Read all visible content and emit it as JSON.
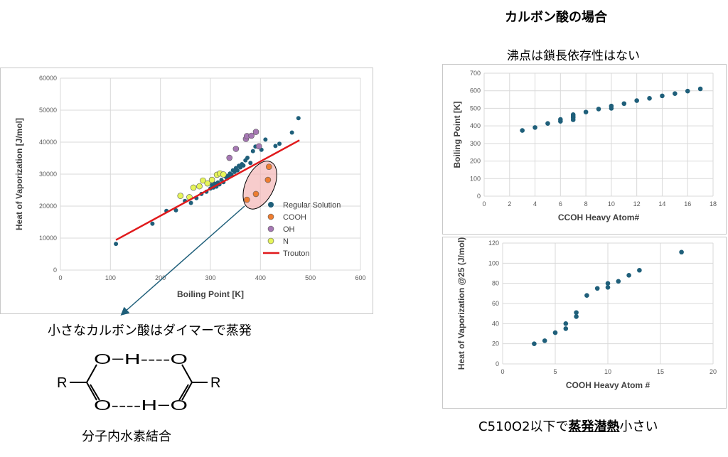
{
  "page": {
    "title": "カルボン酸の場合",
    "top_right_caption": "沸点は鎖長依存性はない",
    "arrow_caption": "小さなカルボン酸はダイマーで蒸発",
    "structure_caption": "分子内水素結合",
    "bottom_right_prefix": "C510O2以下で",
    "bottom_right_emphasis": "蒸発潜熱",
    "bottom_right_suffix": "小さい"
  },
  "structure": {
    "r_left": "R",
    "r_right": "R",
    "top_row": "O−H----O",
    "bottom_row": "O----H−O"
  },
  "chart_data": [
    {
      "type": "scatter",
      "title": "",
      "xlabel": "Boiling Point [K]",
      "ylabel": "Heat of Vaporization [J/mol]",
      "xlim": [
        0,
        600
      ],
      "ylim": [
        0,
        60000
      ],
      "xticks": [
        0,
        100,
        200,
        300,
        400,
        500,
        600
      ],
      "yticks": [
        0,
        10000,
        20000,
        30000,
        40000,
        50000,
        60000
      ],
      "grid": true,
      "legend_position": "bottom-right",
      "series": [
        {
          "name": "Regular Solution",
          "color": "#1f5f7a",
          "points": [
            [
              111,
              8200
            ],
            [
              184,
              14500
            ],
            [
              212,
              18500
            ],
            [
              231,
              18700
            ],
            [
              249,
              21600
            ],
            [
              261,
              21000
            ],
            [
              272,
              22500
            ],
            [
              282,
              23800
            ],
            [
              292,
              24500
            ],
            [
              300,
              25500
            ],
            [
              303,
              26600
            ],
            [
              306,
              25800
            ],
            [
              309,
              27000
            ],
            [
              312,
              26100
            ],
            [
              315,
              27400
            ],
            [
              318,
              26800
            ],
            [
              322,
              28200
            ],
            [
              326,
              27500
            ],
            [
              330,
              29300
            ],
            [
              333,
              28600
            ],
            [
              336,
              29500
            ],
            [
              339,
              30200
            ],
            [
              342,
              29800
            ],
            [
              345,
              31200
            ],
            [
              348,
              30700
            ],
            [
              351,
              31900
            ],
            [
              354,
              31200
            ],
            [
              357,
              32600
            ],
            [
              360,
              32100
            ],
            [
              363,
              33100
            ],
            [
              366,
              32700
            ],
            [
              370,
              34300
            ],
            [
              374,
              35100
            ],
            [
              380,
              33500
            ],
            [
              385,
              37200
            ],
            [
              390,
              38600
            ],
            [
              396,
              38900
            ],
            [
              402,
              37600
            ],
            [
              410,
              40800
            ],
            [
              430,
              38800
            ],
            [
              438,
              39500
            ],
            [
              463,
              43000
            ],
            [
              476,
              47500
            ]
          ]
        },
        {
          "name": "COOH",
          "color": "#ed7d31",
          "points": [
            [
              373,
              22000
            ],
            [
              391,
              23800
            ],
            [
              415,
              28200
            ],
            [
              417,
              32300
            ]
          ]
        },
        {
          "name": "OH",
          "color": "#a678b4",
          "points": [
            [
              338,
              35100
            ],
            [
              351,
              37900
            ],
            [
              371,
              41000
            ],
            [
              373,
              41900
            ],
            [
              382,
              42000
            ],
            [
              391,
              43200
            ],
            [
              397,
              38700
            ]
          ]
        },
        {
          "name": "N",
          "color": "#e6f55a",
          "points": [
            [
              240,
              23200
            ],
            [
              258,
              22800
            ],
            [
              266,
              25800
            ],
            [
              278,
              26200
            ],
            [
              285,
              28000
            ],
            [
              294,
              27100
            ],
            [
              303,
              28200
            ],
            [
              313,
              29800
            ],
            [
              319,
              30200
            ],
            [
              326,
              29900
            ]
          ]
        },
        {
          "name": "Trouton",
          "color": "#e0191b",
          "type": "line",
          "points": [
            [
              111,
              9400
            ],
            [
              478,
              40600
            ]
          ]
        }
      ],
      "annotations": [
        "ellipse-around-COOH",
        "arrow-to-dimer-caption"
      ]
    },
    {
      "type": "scatter",
      "title": "",
      "xlabel": "CCOH  Heavy Atom#",
      "ylabel": "Boiling Point [K]",
      "xlim": [
        0,
        18
      ],
      "ylim": [
        0,
        700
      ],
      "xticks": [
        0,
        2,
        4,
        6,
        8,
        10,
        12,
        14,
        16,
        18
      ],
      "yticks": [
        0,
        100,
        200,
        300,
        400,
        500,
        600,
        700
      ],
      "grid": true,
      "series": [
        {
          "name": "",
          "color": "#1f5f7a",
          "points": [
            [
              3,
              374
            ],
            [
              4,
              391
            ],
            [
              5,
              414
            ],
            [
              6,
              426
            ],
            [
              6,
              437
            ],
            [
              7,
              435
            ],
            [
              7,
              447
            ],
            [
              7,
              456
            ],
            [
              7,
              464
            ],
            [
              8,
              479
            ],
            [
              9,
              496
            ],
            [
              10,
              500
            ],
            [
              10,
              513
            ],
            [
              11,
              527
            ],
            [
              12,
              544
            ],
            [
              13,
              557
            ],
            [
              14,
              571
            ],
            [
              15,
              584
            ],
            [
              16,
              598
            ],
            [
              17,
              611
            ]
          ]
        }
      ]
    },
    {
      "type": "scatter",
      "title": "",
      "xlabel": "COOH Heavy Atom #",
      "ylabel": "Heat of Vaporization @25 (J/mol)",
      "xlim": [
        0,
        20
      ],
      "ylim": [
        0,
        120
      ],
      "xticks": [
        0,
        5,
        10,
        15,
        20
      ],
      "yticks": [
        0,
        20,
        40,
        60,
        80,
        100,
        120
      ],
      "grid": true,
      "series": [
        {
          "name": "",
          "color": "#1f5f7a",
          "points": [
            [
              3,
              20
            ],
            [
              4,
              23
            ],
            [
              5,
              31
            ],
            [
              6,
              35
            ],
            [
              6,
              40
            ],
            [
              7,
              47
            ],
            [
              7,
              51
            ],
            [
              8,
              68
            ],
            [
              9,
              75
            ],
            [
              10,
              76
            ],
            [
              10,
              80
            ],
            [
              11,
              82
            ],
            [
              12,
              88
            ],
            [
              13,
              93
            ],
            [
              17,
              111
            ]
          ]
        }
      ]
    }
  ]
}
